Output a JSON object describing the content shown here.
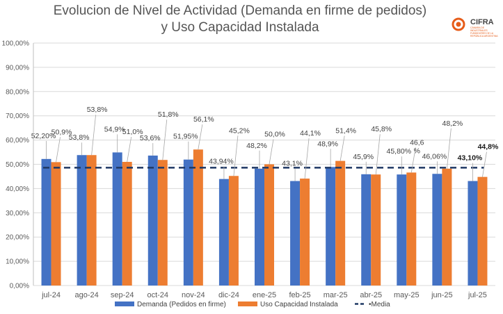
{
  "header": {
    "title_line1": "Evolucion de Nivel de Actividad (Demanda en firme de pedidos)",
    "title_line2": "y Uso Capacidad Instalada",
    "logo_name": "CIFRA",
    "logo_subtitle": "CÁMARA DE INDUSTRIALES FUNDIDORES DE LA REPÚBLICA ARGENTINA",
    "logo_icon": "cifra-logo-icon"
  },
  "chart_data": {
    "type": "bar",
    "categories": [
      "jul-24",
      "ago-24",
      "sep-24",
      "oct-24",
      "nov-24",
      "dic-24",
      "ene-25",
      "feb-25",
      "mar-25",
      "abr-25",
      "may-25",
      "jun-25",
      "jul-25"
    ],
    "ylim": [
      0,
      100
    ],
    "yticks": [
      "0,00%",
      "10,00%",
      "20,00%",
      "30,00%",
      "40,00%",
      "50,00%",
      "60,00%",
      "70,00%",
      "80,00%",
      "90,00%",
      "100,00%"
    ],
    "grid": true,
    "legend_position": "bottom",
    "series": [
      {
        "name": "Demanda (Pedidos en firme)",
        "color": "#4472c4",
        "values": [
          52.2,
          53.8,
          54.9,
          53.6,
          51.95,
          43.94,
          48.2,
          43.1,
          48.9,
          45.9,
          45.8,
          46.06,
          43.1
        ],
        "labels": [
          "52,20%",
          "53,8%",
          "54,9%",
          "53,6%",
          "51,95%",
          "43,94%",
          "48,2%",
          "43,1%",
          "48,9%",
          "45,9%",
          "45,80%",
          "46,06%",
          "43,10%"
        ]
      },
      {
        "name": "Uso Capacidad Instalada",
        "color": "#ed7d31",
        "values": [
          50.9,
          53.8,
          51.0,
          51.8,
          56.1,
          45.2,
          50.0,
          44.1,
          51.4,
          45.8,
          46.6,
          48.2,
          44.8
        ],
        "labels": [
          "50,9%",
          "53,8%",
          "51,0%",
          "51,8%",
          "56,1%",
          "45,2%",
          "50,0%",
          "44,1%",
          "51,4%",
          "45,8%",
          "46,6\n%",
          "48,2%",
          "44,8%"
        ]
      },
      {
        "name": "Media",
        "color": "#1f3864",
        "value": 48.6
      }
    ]
  }
}
